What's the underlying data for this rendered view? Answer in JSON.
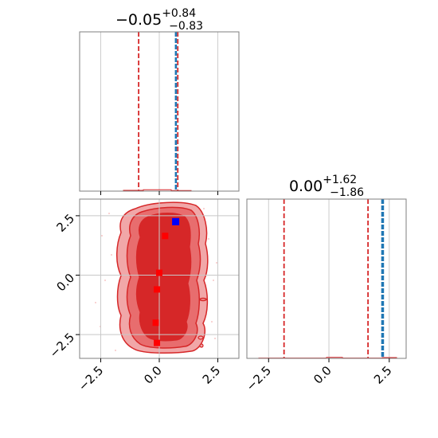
{
  "chart_data": {
    "type": "corner",
    "parameters": [
      "",
      ""
    ],
    "panels": [
      {
        "kind": "histogram",
        "parameter_index": 0,
        "title": {
          "median": "−0.05",
          "plus": "+0.84",
          "minus": "−0.83"
        },
        "xlim": [
          -3.4,
          3.4
        ],
        "grid": true,
        "quantile_lines": [
          -0.88,
          0.79
        ],
        "truth_lines": [
          0.7,
          0.72
        ],
        "colors": {
          "quantile": "#d62728",
          "truth": "#1f77b4",
          "hist": "#d62728",
          "grid": "#cccccc"
        }
      },
      {
        "kind": "histogram",
        "parameter_index": 1,
        "title": {
          "median": "0.00",
          "plus": "+1.62",
          "minus": "−1.86"
        },
        "xlim": [
          -3.4,
          3.2
        ],
        "grid": true,
        "quantile_lines": [
          -1.86,
          1.62
        ],
        "truth_lines": [
          2.2,
          2.25
        ],
        "colors": {
          "quantile": "#d62728",
          "truth": "#1f77b4",
          "hist": "#d62728",
          "grid": "#cccccc"
        }
      },
      {
        "kind": "contour",
        "xlim": [
          -3.4,
          3.4
        ],
        "ylim": [
          -3.5,
          3.2
        ],
        "grid": true,
        "colors": {
          "outer": "#f1a7a8",
          "mid": "#e86d6e",
          "inner": "#d62728",
          "line": "#d62728"
        },
        "samples_red": [
          {
            "x": 0.25,
            "y": 1.65
          },
          {
            "x": 0.0,
            "y": 0.1
          },
          {
            "x": -0.1,
            "y": -0.6
          },
          {
            "x": -0.15,
            "y": -2.0
          },
          {
            "x": -0.1,
            "y": -2.85
          }
        ],
        "sample_blue": {
          "x": 0.7,
          "y": 2.25
        }
      }
    ],
    "ticks": {
      "x0": {
        "values": [
          -2.5,
          0.0,
          2.5
        ],
        "labels": [
          "−2.5",
          "0.0",
          "2.5"
        ]
      },
      "x1": {
        "values": [
          -2.5,
          0.0,
          2.5
        ],
        "labels": [
          "−2.5",
          "0.0",
          "2.5"
        ]
      },
      "y": {
        "values": [
          2.5,
          0.0,
          -2.5
        ],
        "labels": [
          "2.5",
          "0.0",
          "−2.5"
        ]
      }
    }
  }
}
